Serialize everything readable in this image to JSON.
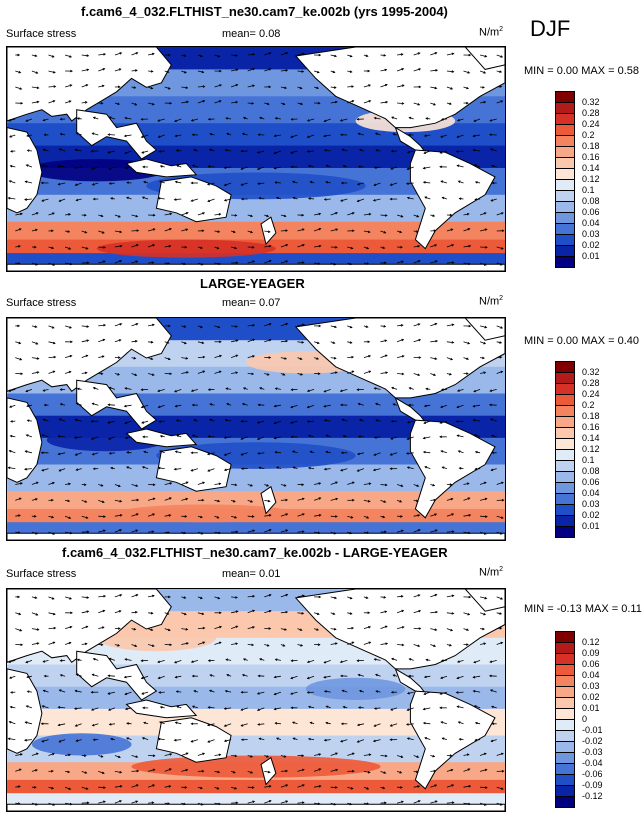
{
  "season": "DJF",
  "panels": [
    {
      "title": "f.cam6_4_032.FLTHIST_ne30.cam7_ke.002b (yrs 1995-2004)",
      "variable": "Surface stress",
      "mean_label": "mean=",
      "mean_value": "0.08",
      "units": "N/m",
      "units_sup": "2",
      "min_label": "MIN =",
      "min_value": "0.00",
      "max_label": "MAX =",
      "max_value": "0.58",
      "levels": [
        "0.32",
        "0.28",
        "0.24",
        "0.2",
        "0.18",
        "0.16",
        "0.14",
        "0.12",
        "0.1",
        "0.08",
        "0.06",
        "0.04",
        "0.03",
        "0.02",
        "0.01"
      ]
    },
    {
      "title": "LARGE-YEAGER",
      "variable": "Surface stress",
      "mean_label": "mean=",
      "mean_value": "0.07",
      "units": "N/m",
      "units_sup": "2",
      "min_label": "MIN =",
      "min_value": "0.00",
      "max_label": "MAX =",
      "max_value": "0.40",
      "levels": [
        "0.32",
        "0.28",
        "0.24",
        "0.2",
        "0.18",
        "0.16",
        "0.14",
        "0.12",
        "0.1",
        "0.08",
        "0.06",
        "0.04",
        "0.03",
        "0.02",
        "0.01"
      ]
    },
    {
      "title": "f.cam6_4_032.FLTHIST_ne30.cam7_ke.002b - LARGE-YEAGER",
      "variable": "Surface stress",
      "mean_label": "mean=",
      "mean_value": "0.01",
      "units": "N/m",
      "units_sup": "2",
      "min_label": "MIN =",
      "min_value": "-0.13",
      "max_label": "MAX =",
      "max_value": "0.11",
      "levels": [
        "0.12",
        "0.09",
        "0.06",
        "0.04",
        "0.03",
        "0.02",
        "0.01",
        "0",
        "-0.01",
        "-0.02",
        "-0.03",
        "-0.04",
        "-0.06",
        "-0.09",
        "-0.12"
      ]
    }
  ],
  "colors": {
    "scale": [
      "#800000",
      "#b31b1b",
      "#d73027",
      "#ec5a3a",
      "#f4845f",
      "#f8a886",
      "#fbc8ad",
      "#fde6d6",
      "#e0ebf8",
      "#bfd3f1",
      "#9ab8ea",
      "#6f97e0",
      "#4673d6",
      "#1f4fc8",
      "#0a24a8",
      "#000080"
    ]
  },
  "chart_data": [
    {
      "type": "heatmap",
      "title": "f.cam6_4_032.FLTHIST_ne30.cam7_ke.002b (yrs 1995-2004)",
      "variable": "Surface stress",
      "units": "N/m2",
      "mean": 0.08,
      "min": 0.0,
      "max": 0.58,
      "contour_levels": [
        0.01,
        0.02,
        0.03,
        0.04,
        0.06,
        0.08,
        0.1,
        0.12,
        0.14,
        0.16,
        0.18,
        0.2,
        0.24,
        0.28,
        0.32
      ]
    },
    {
      "type": "heatmap",
      "title": "LARGE-YEAGER",
      "variable": "Surface stress",
      "units": "N/m2",
      "mean": 0.07,
      "min": 0.0,
      "max": 0.4,
      "contour_levels": [
        0.01,
        0.02,
        0.03,
        0.04,
        0.06,
        0.08,
        0.1,
        0.12,
        0.14,
        0.16,
        0.18,
        0.2,
        0.24,
        0.28,
        0.32
      ]
    },
    {
      "type": "heatmap",
      "title": "f.cam6_4_032.FLTHIST_ne30.cam7_ke.002b - LARGE-YEAGER",
      "variable": "Surface stress",
      "units": "N/m2",
      "mean": 0.01,
      "min": -0.13,
      "max": 0.11,
      "contour_levels": [
        -0.12,
        -0.09,
        -0.06,
        -0.04,
        -0.03,
        -0.02,
        -0.01,
        0,
        0.01,
        0.02,
        0.03,
        0.04,
        0.06,
        0.09,
        0.12
      ]
    }
  ]
}
